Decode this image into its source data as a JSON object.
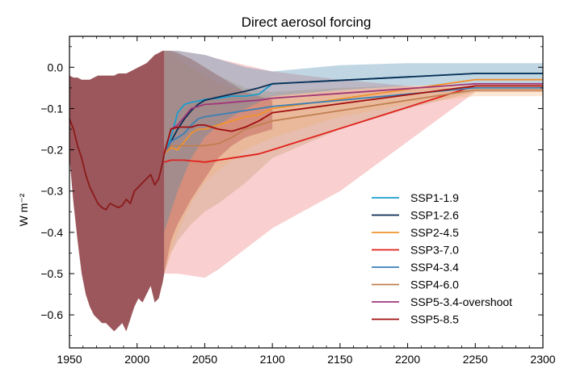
{
  "chart_data": {
    "type": "line",
    "title": "Direct aerosol forcing",
    "xlabel": "",
    "ylabel": "W m⁻²",
    "xlim": [
      1950,
      2300
    ],
    "ylim": [
      -0.68,
      0.075
    ],
    "xticks": [
      1950,
      2000,
      2050,
      2100,
      2150,
      2200,
      2250,
      2300
    ],
    "xtick_labels": [
      "1950",
      "2000",
      "2050",
      "2100",
      "2150",
      "2200",
      "2250",
      "2300"
    ],
    "yticks": [
      0.0,
      -0.1,
      -0.2,
      -0.3,
      -0.4,
      -0.5,
      -0.6
    ],
    "ytick_labels": [
      "0.0",
      "−0.1",
      "−0.2",
      "−0.3",
      "−0.4",
      "−0.5",
      "−0.6"
    ],
    "legend_position": "lower-right",
    "grid": false,
    "historical": {
      "x": [
        1950,
        1953,
        1956,
        1959,
        1962,
        1965,
        1968,
        1971,
        1974,
        1977,
        1980,
        1983,
        1986,
        1989,
        1992,
        1995,
        1998,
        2001,
        2004,
        2007,
        2010,
        2013,
        2016,
        2019,
        2020
      ],
      "median": [
        -0.125,
        -0.15,
        -0.19,
        -0.22,
        -0.26,
        -0.29,
        -0.31,
        -0.33,
        -0.34,
        -0.345,
        -0.33,
        -0.335,
        -0.34,
        -0.335,
        -0.32,
        -0.33,
        -0.3,
        -0.29,
        -0.28,
        -0.27,
        -0.26,
        -0.285,
        -0.27,
        -0.23,
        -0.21
      ],
      "upper": [
        -0.02,
        -0.025,
        -0.025,
        -0.03,
        -0.03,
        -0.03,
        -0.025,
        -0.02,
        -0.02,
        -0.02,
        -0.02,
        -0.02,
        -0.015,
        -0.015,
        -0.015,
        -0.01,
        -0.005,
        0.0,
        0.005,
        0.01,
        0.02,
        0.03,
        0.035,
        0.04,
        0.04
      ],
      "lower": [
        -0.22,
        -0.33,
        -0.42,
        -0.5,
        -0.55,
        -0.58,
        -0.6,
        -0.61,
        -0.62,
        -0.62,
        -0.63,
        -0.64,
        -0.63,
        -0.62,
        -0.64,
        -0.61,
        -0.58,
        -0.56,
        -0.57,
        -0.55,
        -0.53,
        -0.57,
        -0.56,
        -0.52,
        -0.5
      ],
      "color": "#8b1a1a"
    },
    "x": [
      2020,
      2025,
      2030,
      2035,
      2040,
      2045,
      2050,
      2060,
      2070,
      2080,
      2090,
      2100,
      2250,
      2300
    ],
    "series": [
      {
        "name": "SSP1-1.9",
        "color": "#1a9ecf",
        "values": [
          -0.21,
          -0.17,
          -0.11,
          -0.09,
          -0.085,
          -0.082,
          -0.078,
          -0.075,
          -0.07,
          -0.07,
          -0.065,
          -0.04,
          -0.015,
          -0.015
        ]
      },
      {
        "name": "SSP1-2.6",
        "color": "#0b2e54",
        "values": [
          -0.21,
          -0.18,
          -0.15,
          -0.125,
          -0.105,
          -0.09,
          -0.08,
          -0.072,
          -0.065,
          -0.058,
          -0.05,
          -0.04,
          -0.015,
          -0.015
        ]
      },
      {
        "name": "SSP2-4.5",
        "color": "#f2922b",
        "values": [
          -0.21,
          -0.195,
          -0.2,
          -0.18,
          -0.16,
          -0.15,
          -0.15,
          -0.14,
          -0.13,
          -0.12,
          -0.115,
          -0.1,
          -0.03,
          -0.03
        ]
      },
      {
        "name": "SSP3-7.0",
        "color": "#e0201a",
        "values": [
          -0.23,
          -0.225,
          -0.225,
          -0.225,
          -0.227,
          -0.228,
          -0.23,
          -0.225,
          -0.22,
          -0.215,
          -0.21,
          -0.2,
          -0.045,
          -0.045
        ]
      },
      {
        "name": "SSP4-3.4",
        "color": "#3a7fb5",
        "values": [
          -0.21,
          -0.18,
          -0.17,
          -0.16,
          -0.14,
          -0.125,
          -0.12,
          -0.115,
          -0.11,
          -0.105,
          -0.1,
          -0.095,
          -0.05,
          -0.05
        ]
      },
      {
        "name": "SSP4-6.0",
        "color": "#bf7f50",
        "values": [
          -0.21,
          -0.19,
          -0.19,
          -0.19,
          -0.19,
          -0.19,
          -0.19,
          -0.185,
          -0.17,
          -0.15,
          -0.14,
          -0.13,
          -0.055,
          -0.055
        ]
      },
      {
        "name": "SSP5-3.4-overshoot",
        "color": "#a0387a",
        "values": [
          -0.21,
          -0.15,
          -0.14,
          -0.12,
          -0.1,
          -0.095,
          -0.09,
          -0.088,
          -0.085,
          -0.082,
          -0.08,
          -0.075,
          -0.04,
          -0.04
        ]
      },
      {
        "name": "SSP5-8.5",
        "color": "#a00f0f",
        "values": [
          -0.21,
          -0.15,
          -0.145,
          -0.145,
          -0.145,
          -0.14,
          -0.14,
          -0.15,
          -0.155,
          -0.145,
          -0.13,
          -0.11,
          -0.045,
          -0.045
        ]
      }
    ],
    "bands": [
      {
        "name": "SSP3-7.0",
        "color": "#f08080",
        "opacity": 0.38,
        "x": [
          2020,
          2025,
          2030,
          2040,
          2050,
          2060,
          2080,
          2100,
          2150,
          2200,
          2250,
          2300
        ],
        "upper": [
          0.04,
          0.04,
          0.04,
          0.035,
          0.03,
          0.02,
          0.005,
          -0.01,
          -0.03,
          -0.045,
          -0.055,
          -0.055
        ],
        "lower": [
          -0.5,
          -0.5,
          -0.5,
          -0.505,
          -0.51,
          -0.49,
          -0.44,
          -0.39,
          -0.3,
          -0.18,
          -0.06,
          -0.06
        ]
      },
      {
        "name": "SSP4-6.0",
        "color": "#c49a70",
        "opacity": 0.35,
        "x": [
          2020,
          2025,
          2030,
          2040,
          2050,
          2060,
          2080,
          2100,
          2150,
          2200,
          2250,
          2300
        ],
        "upper": [
          0.04,
          0.04,
          0.035,
          0.02,
          0.0,
          -0.02,
          -0.05,
          -0.06,
          -0.05,
          -0.045,
          -0.04,
          -0.04
        ],
        "lower": [
          -0.5,
          -0.45,
          -0.42,
          -0.38,
          -0.35,
          -0.33,
          -0.28,
          -0.22,
          -0.15,
          -0.1,
          -0.06,
          -0.06
        ]
      },
      {
        "name": "SSP2-4.5",
        "color": "#f5b070",
        "opacity": 0.3,
        "x": [
          2020,
          2025,
          2030,
          2040,
          2050,
          2060,
          2080,
          2100,
          2150,
          2200,
          2250,
          2300
        ],
        "upper": [
          0.04,
          0.035,
          0.02,
          0.0,
          -0.02,
          -0.04,
          -0.06,
          -0.07,
          -0.06,
          -0.05,
          -0.045,
          -0.045
        ],
        "lower": [
          -0.5,
          -0.45,
          -0.4,
          -0.33,
          -0.28,
          -0.25,
          -0.2,
          -0.17,
          -0.12,
          -0.09,
          -0.07,
          -0.07
        ]
      },
      {
        "name": "SSP5-8.5",
        "color": "#b04040",
        "opacity": 0.35,
        "x": [
          2020,
          2025,
          2030,
          2040,
          2050,
          2060,
          2070,
          2080,
          2090,
          2100
        ],
        "upper": [
          0.04,
          0.04,
          0.035,
          0.02,
          0.0,
          -0.02,
          -0.04,
          -0.06,
          -0.07,
          -0.08
        ],
        "lower": [
          -0.5,
          -0.42,
          -0.38,
          -0.32,
          -0.27,
          -0.22,
          -0.19,
          -0.17,
          -0.16,
          -0.15
        ]
      },
      {
        "name": "SSP1-2.6",
        "color": "#4a8ab0",
        "opacity": 0.35,
        "x": [
          2020,
          2030,
          2040,
          2050,
          2060,
          2080,
          2100,
          2150,
          2200,
          2250,
          2300
        ],
        "upper": [
          0.04,
          0.04,
          0.035,
          0.03,
          0.02,
          0.0,
          -0.01,
          0.005,
          0.01,
          0.01,
          0.01
        ],
        "lower": [
          -0.4,
          -0.3,
          -0.22,
          -0.17,
          -0.14,
          -0.1,
          -0.07,
          -0.055,
          -0.045,
          -0.04,
          -0.04
        ]
      }
    ]
  }
}
